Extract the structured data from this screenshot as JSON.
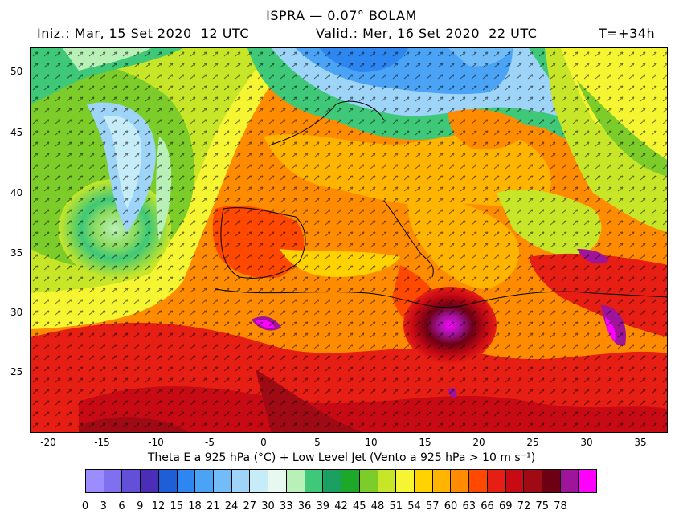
{
  "header": {
    "title": "ISPRA — 0.07° BOLAM",
    "init": "Iniz.: Mar, 15 Set 2020  12 UTC",
    "valid": "Valid.: Mer, 16 Set 2020  22 UTC",
    "step": "T=+34h"
  },
  "map": {
    "lat_ticks": [
      "50",
      "45",
      "40",
      "35",
      "30",
      "25"
    ],
    "lon_ticks": [
      "-20",
      "-15",
      "-10",
      "-5",
      "0",
      "5",
      "10",
      "15",
      "20",
      "25",
      "30",
      "35"
    ],
    "lat_range": [
      20,
      52
    ],
    "lon_range": [
      -21.5,
      37.5
    ],
    "cyclones": [
      {
        "name": "Atlantic low",
        "lon": -13.5,
        "lat": 36.5
      },
      {
        "name": "Mediterranean cyclone",
        "lon": 17.5,
        "lat": 29.5
      }
    ]
  },
  "legend": {
    "subtitle": "Theta E a 925 hPa (°C) + Low Level Jet (Vento a 925 hPa > 10 m s⁻¹)",
    "labels": [
      "0",
      "3",
      "6",
      "9",
      "12",
      "15",
      "18",
      "21",
      "24",
      "27",
      "30",
      "33",
      "36",
      "39",
      "42",
      "45",
      "48",
      "51",
      "54",
      "57",
      "60",
      "63",
      "66",
      "69",
      "72",
      "75",
      "78"
    ],
    "colors": [
      "#9b8cff",
      "#8070f0",
      "#6450d8",
      "#4b2db8",
      "#1e5fd8",
      "#2e86f0",
      "#4aa3f5",
      "#72bdf7",
      "#9dd4f8",
      "#c6ecf8",
      "#e6f8f0",
      "#b8f0b8",
      "#3ec878",
      "#1aa060",
      "#1ea82a",
      "#7ccc2a",
      "#c8e628",
      "#f5f532",
      "#ffd200",
      "#ffb400",
      "#ff8c00",
      "#ff4800",
      "#e61e14",
      "#c80a14",
      "#a00a14",
      "#6e0014",
      "#a0149b",
      "#ff00ff"
    ]
  }
}
